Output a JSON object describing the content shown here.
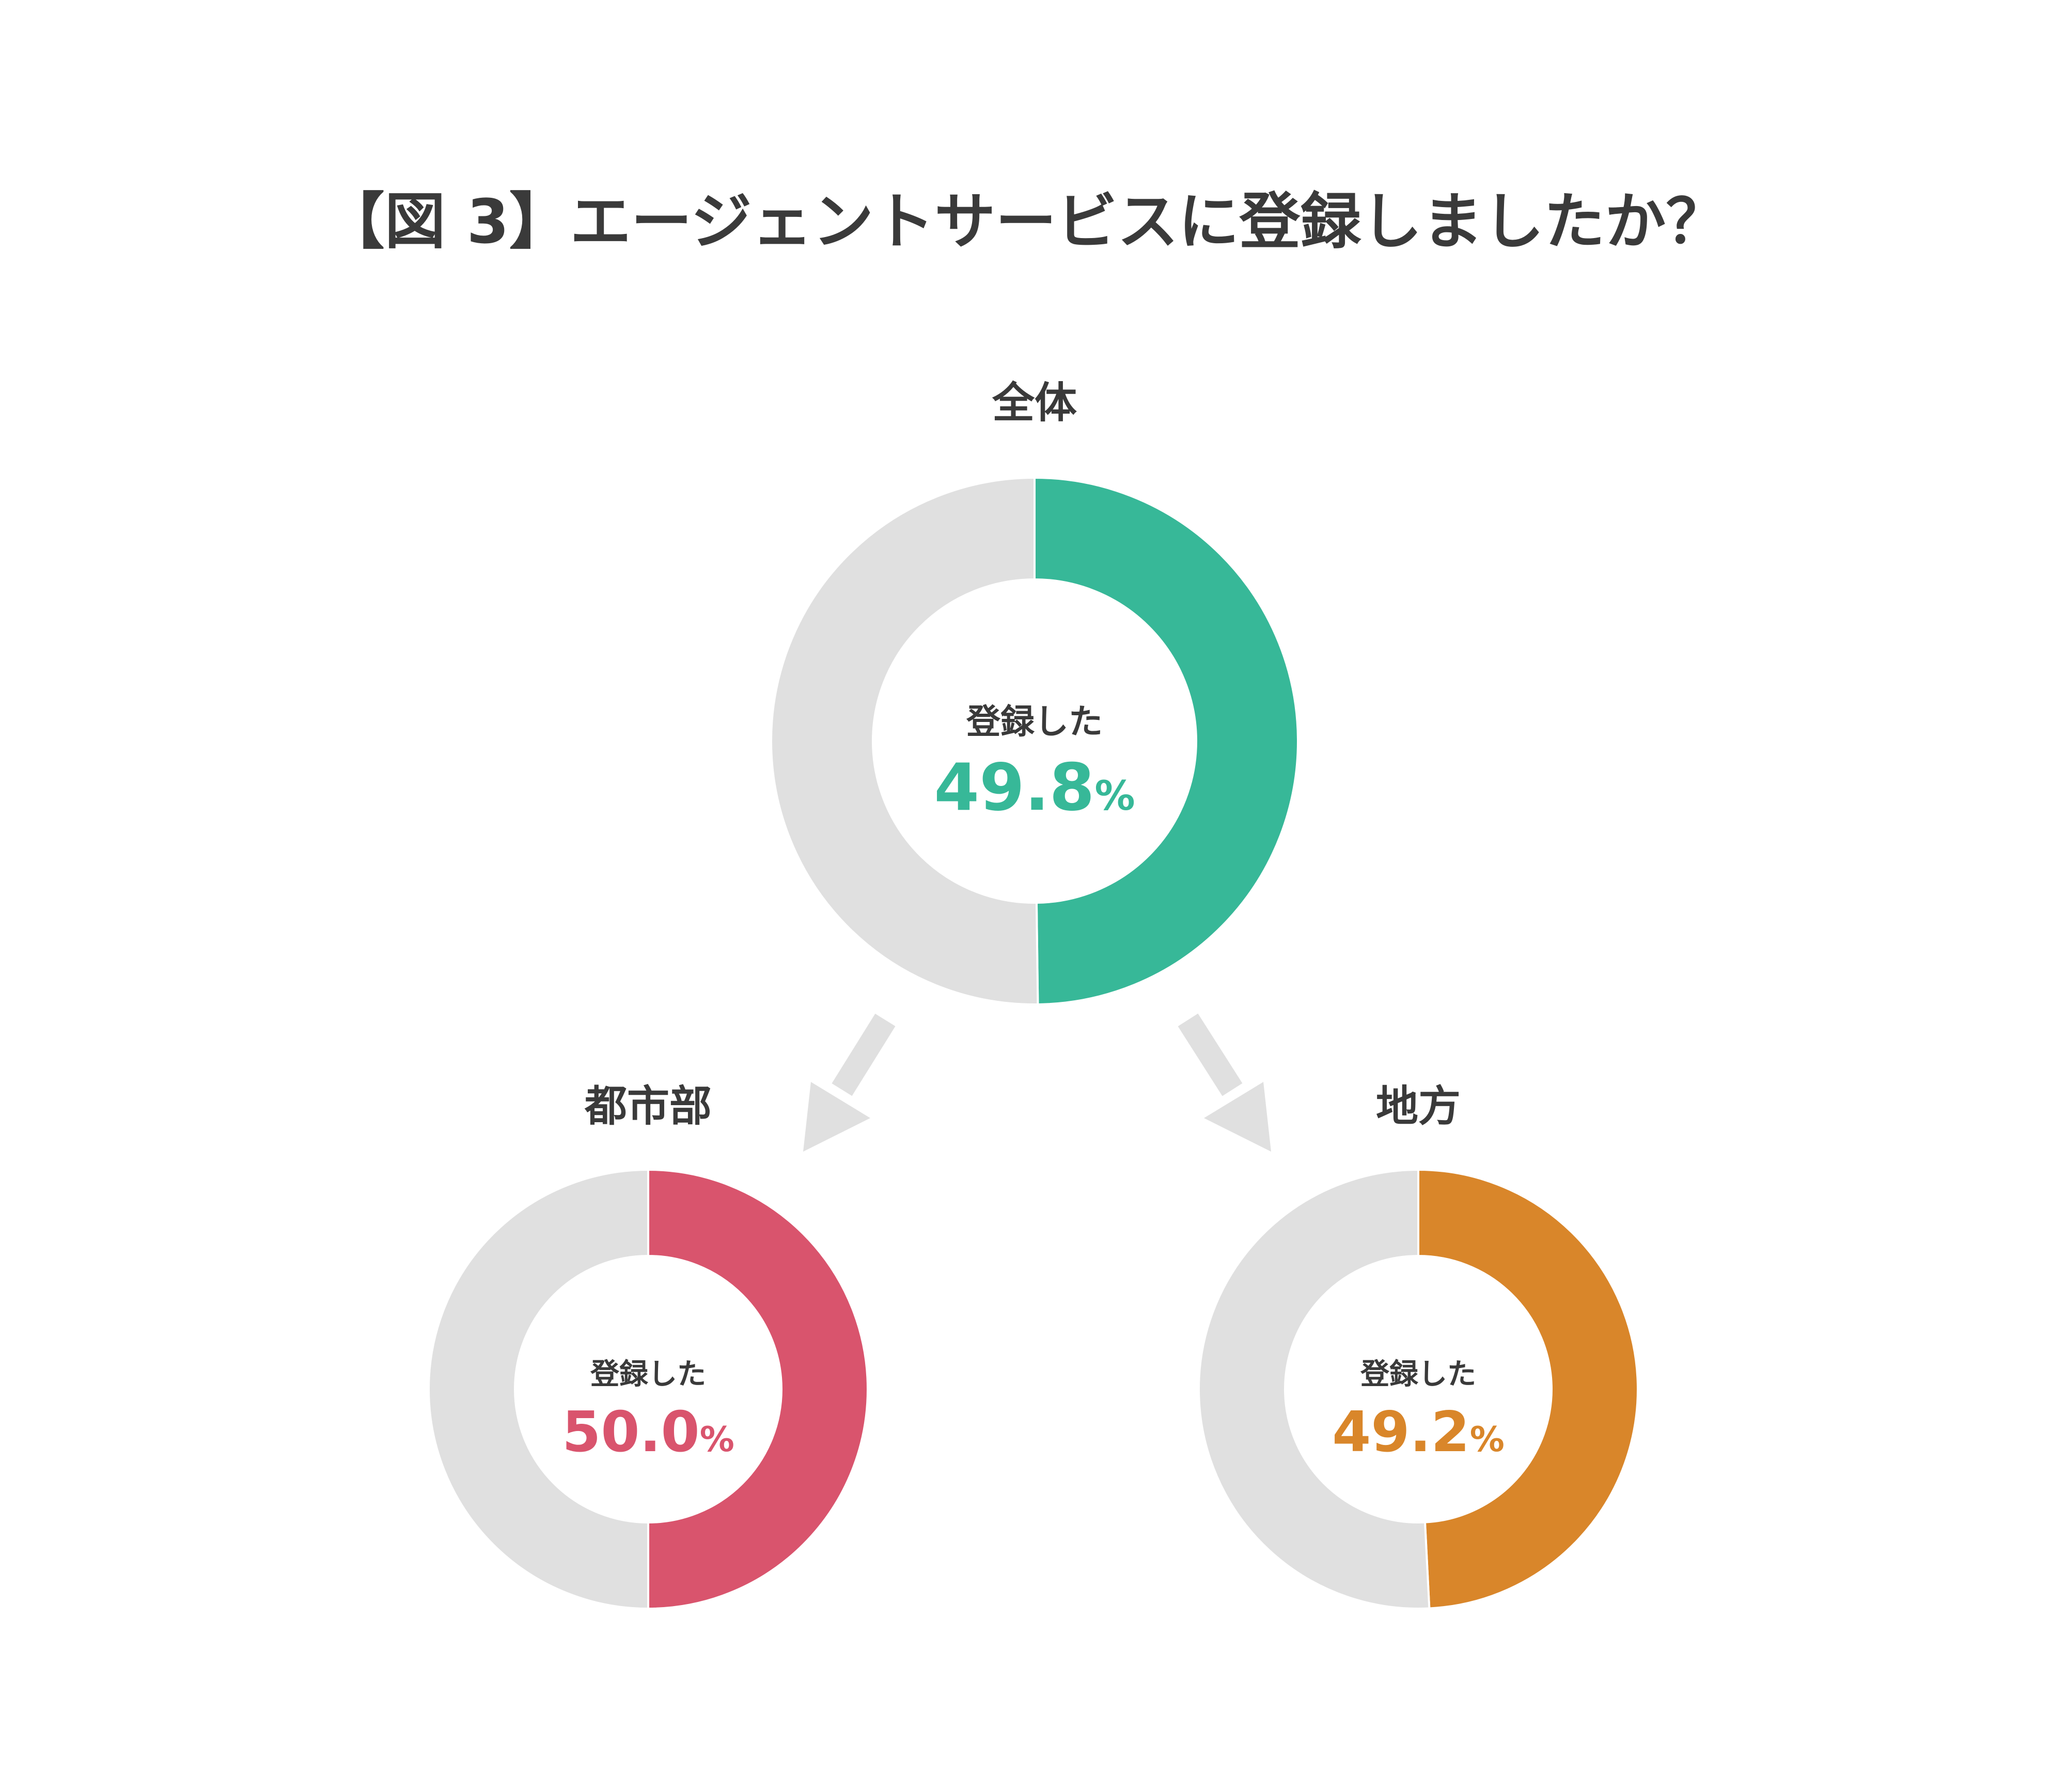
{
  "title": "【図 3】エージェントサービスに登録しましたか？",
  "chart_data": [
    {
      "type": "pie",
      "variant": "donut",
      "title": "全体",
      "center_label": "登録した",
      "categories": [
        "登録した",
        ""
      ],
      "values": [
        49.8,
        50.2
      ],
      "display_value": "49.8",
      "unit": "%",
      "colors": [
        "#37b898",
        "#e0e0e0"
      ]
    },
    {
      "type": "pie",
      "variant": "donut",
      "title": "都市部",
      "center_label": "登録した",
      "categories": [
        "登録した",
        ""
      ],
      "values": [
        50.0,
        50.0
      ],
      "display_value": "50.0",
      "unit": "%",
      "colors": [
        "#d9546d",
        "#e0e0e0"
      ]
    },
    {
      "type": "pie",
      "variant": "donut",
      "title": "地方",
      "center_label": "登録した",
      "categories": [
        "登録した",
        ""
      ],
      "values": [
        49.2,
        50.8
      ],
      "display_value": "49.2",
      "unit": "%",
      "colors": [
        "#d9862a",
        "#e0e0e0"
      ]
    }
  ],
  "arrow_color": "#e0e0e0"
}
